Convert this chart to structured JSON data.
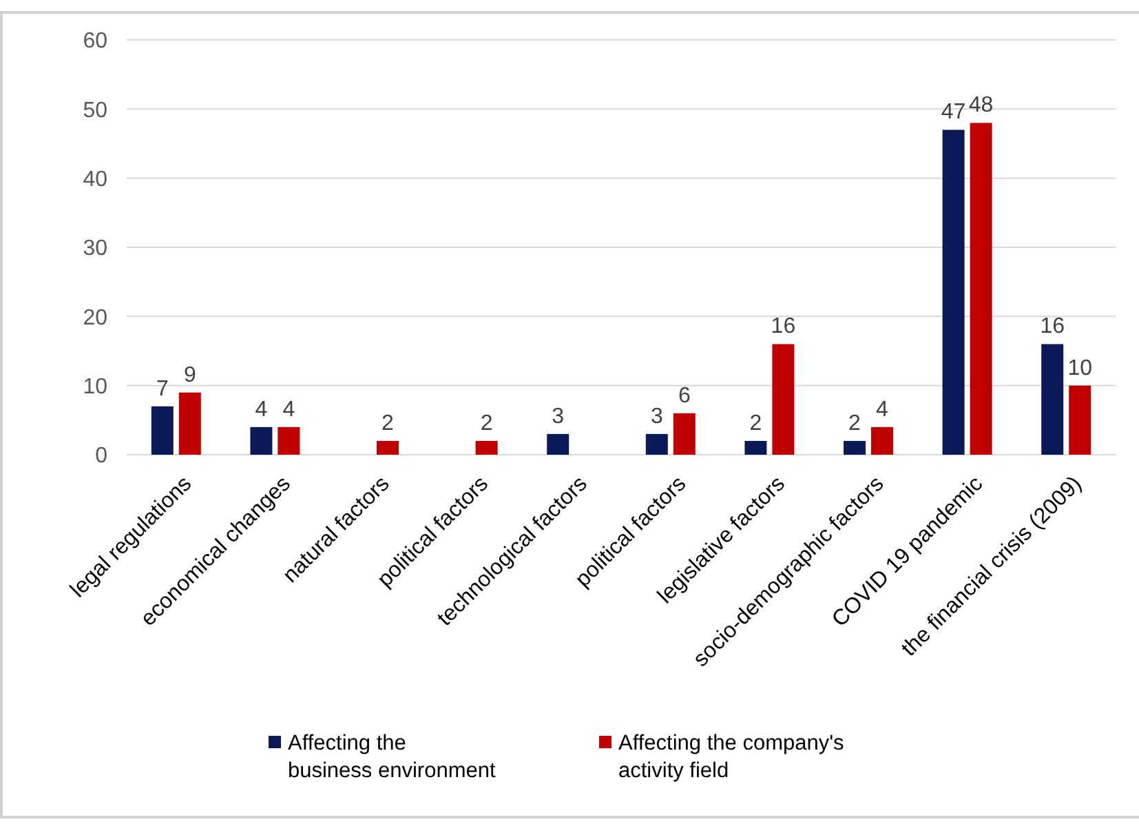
{
  "chart_data": {
    "type": "bar",
    "categories": [
      "legal regulations",
      "economical changes",
      "natural factors",
      "political factors",
      "technological factors",
      "political factors",
      "legislative factors",
      "socio-demographic factors",
      "COVID 19 pandemic",
      "the financial crisis (2009)"
    ],
    "series": [
      {
        "name": "Affecting the\nbusiness environment",
        "color": "#0c1a5a",
        "values": [
          7,
          4,
          null,
          null,
          3,
          3,
          2,
          2,
          47,
          16
        ]
      },
      {
        "name": "Affecting the company's\nactivity field",
        "color": "#c00000",
        "values": [
          9,
          4,
          2,
          2,
          null,
          6,
          16,
          4,
          48,
          10
        ]
      }
    ],
    "ylim": [
      0,
      60
    ],
    "yticks": [
      0,
      10,
      20,
      30,
      40,
      50,
      60
    ],
    "grid": "y",
    "legend": "bottom",
    "data_labels": true
  }
}
